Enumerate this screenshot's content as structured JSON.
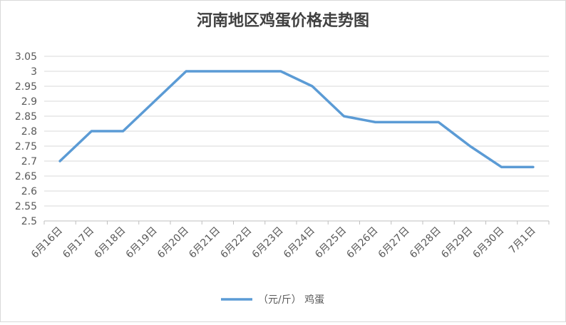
{
  "chart_data": {
    "type": "line",
    "title": "河南地区鸡蛋价格走势图",
    "categories": [
      "6月16日",
      "6月17日",
      "6月18日",
      "6月19日",
      "6月20日",
      "6月21日",
      "6月22日",
      "6月23日",
      "6月24日",
      "6月25日",
      "6月26日",
      "6月27日",
      "6月28日",
      "6月29日",
      "6月30日",
      "7月1日"
    ],
    "series": [
      {
        "name": "（元/斤） 鸡蛋",
        "color": "#5b9bd5",
        "values": [
          2.7,
          2.8,
          2.8,
          2.9,
          3,
          3,
          3,
          3,
          2.95,
          2.85,
          2.83,
          2.83,
          2.83,
          2.75,
          2.68,
          2.68
        ]
      }
    ],
    "ylim": [
      2.5,
      3.05
    ],
    "yticks": [
      2.5,
      2.55,
      2.6,
      2.65,
      2.7,
      2.75,
      2.8,
      2.85,
      2.9,
      2.95,
      3,
      3.05
    ],
    "grid": true,
    "legend": "bottom"
  }
}
